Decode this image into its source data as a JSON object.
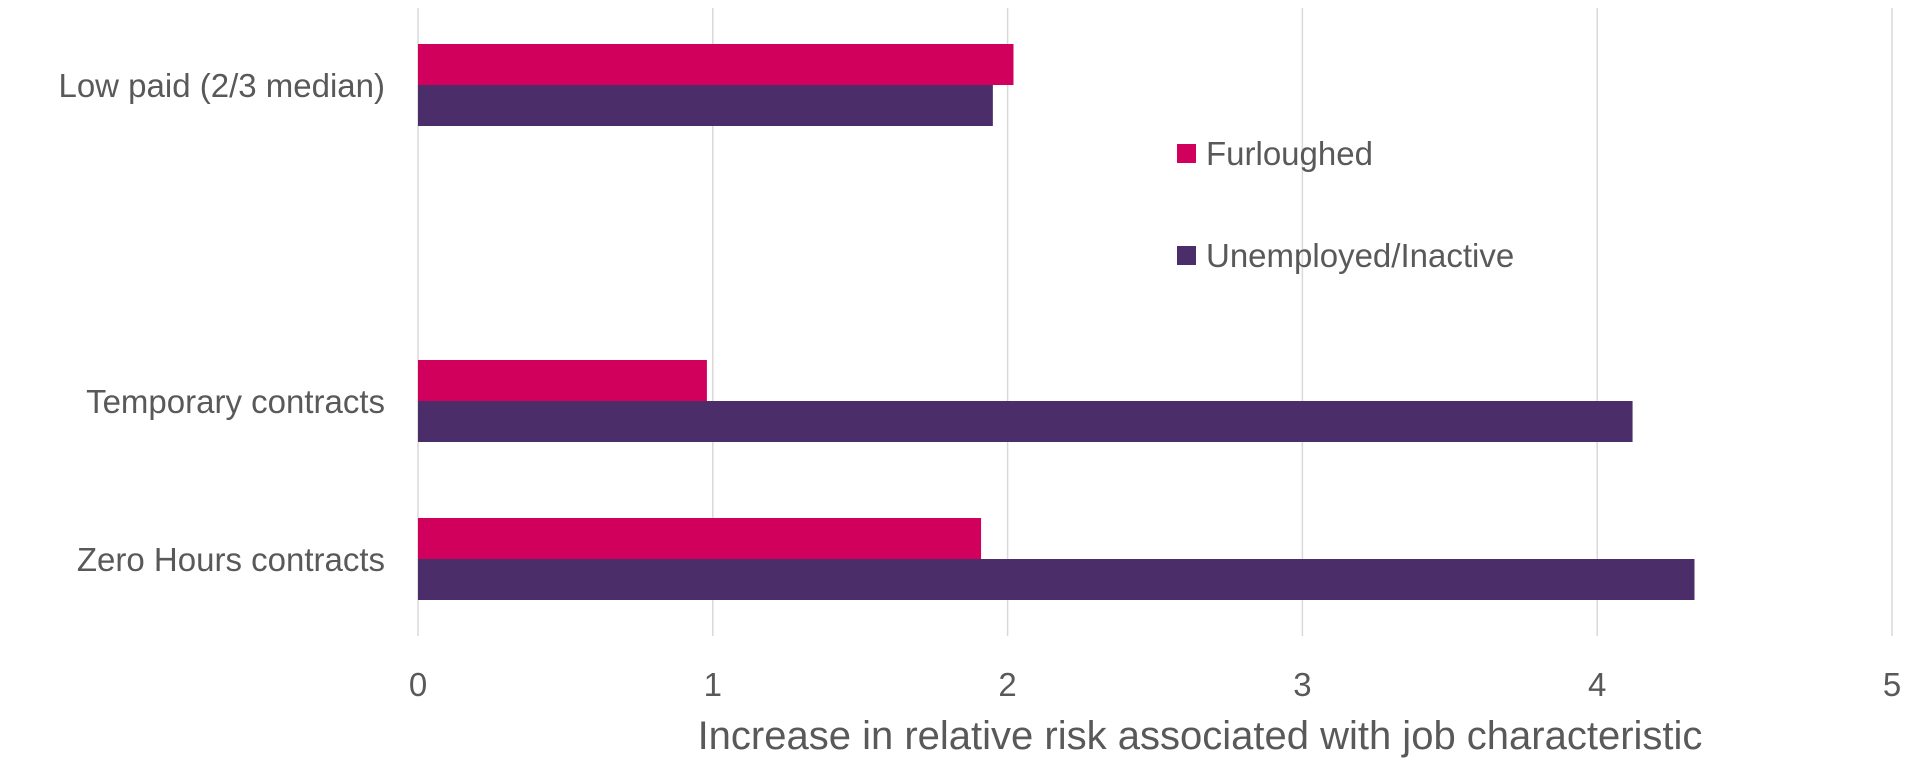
{
  "chart_data": {
    "type": "bar",
    "orientation": "horizontal",
    "categories": [
      "Low paid (2/3 median)",
      "Temporary contracts",
      "Zero Hours contracts"
    ],
    "series": [
      {
        "name": "Furloughed",
        "color": "#D1005D",
        "values": [
          2.02,
          0.98,
          1.91
        ]
      },
      {
        "name": "Unemployed/Inactive",
        "color": "#4B2D69",
        "values": [
          1.95,
          4.12,
          4.33
        ]
      }
    ],
    "xlabel": "Increase in relative risk associated with job characteristic",
    "ylabel": "",
    "xlim": [
      0,
      5
    ],
    "xticks": [
      "0",
      "1",
      "2",
      "3",
      "4",
      "5"
    ],
    "grid": "vertical",
    "legend_position": "center-right inside plot"
  }
}
